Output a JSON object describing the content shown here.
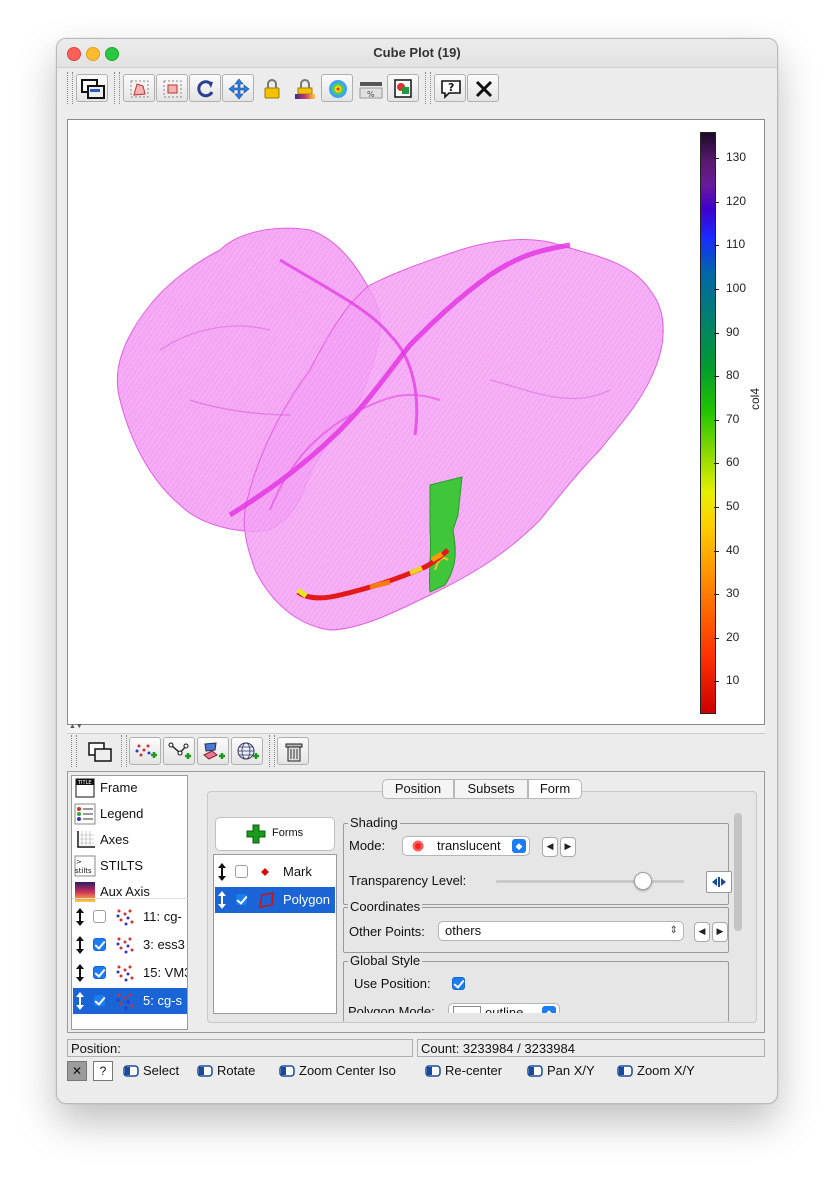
{
  "window": {
    "title": "Cube Plot (19)"
  },
  "toolbar": {
    "buttons": [
      "window-icon",
      "fill-subset-icon",
      "blob-subset-icon",
      "rotate-icon",
      "resize-icon",
      "axis-lock-icon",
      "aux-lock-icon",
      "colour-map-icon",
      "progress-icon",
      "export-icon",
      "help-icon",
      "close-icon"
    ]
  },
  "colorbar": {
    "label": "col4",
    "ticks": [
      "130",
      "120",
      "110",
      "100",
      "90",
      "80",
      "70",
      "60",
      "50",
      "40",
      "30",
      "20",
      "10"
    ],
    "min": 3,
    "max": 136
  },
  "controls": {
    "fixed": [
      {
        "label": "Frame",
        "icon": "frame-icon"
      },
      {
        "label": "Legend",
        "icon": "legend-icon"
      },
      {
        "label": "Axes",
        "icon": "axes-icon"
      },
      {
        "label": "STILTS",
        "icon": "stilts-icon"
      },
      {
        "label": "Aux Axis",
        "icon": "aux-axis-icon"
      }
    ],
    "layers": [
      {
        "label": "11: cg-",
        "checked": false,
        "selected": false
      },
      {
        "label": "3: ess3",
        "checked": true,
        "selected": false
      },
      {
        "label": "15: VM3",
        "checked": true,
        "selected": false
      },
      {
        "label": "5: cg-s",
        "checked": true,
        "selected": true
      }
    ]
  },
  "tabs": [
    {
      "label": "Position",
      "active": false
    },
    {
      "label": "Subsets",
      "active": false
    },
    {
      "label": "Form",
      "active": true
    }
  ],
  "forms": {
    "button_label": "Forms",
    "items": [
      {
        "label": "Mark",
        "checked": false,
        "selected": false
      },
      {
        "label": "Polygon",
        "checked": true,
        "selected": true
      }
    ]
  },
  "shading": {
    "title": "Shading",
    "mode_label": "Mode:",
    "mode_value": "translucent",
    "transparency_label": "Transparency Level:",
    "transparency_level": 0.8
  },
  "coordinates": {
    "title": "Coordinates",
    "other_points_label": "Other Points:",
    "other_points_value": "others"
  },
  "global_style": {
    "title": "Global Style",
    "use_position_label": "Use Position:",
    "use_position_checked": true,
    "polygon_mode_label": "Polygon Mode:",
    "polygon_mode_value": "outline"
  },
  "status": {
    "position_label": "Position:",
    "count_text": "Count: 3233984 / 3233984"
  },
  "mouse_hints": {
    "close_label": "✕",
    "help_label": "?",
    "items": [
      "Select",
      "Rotate",
      "Zoom Center Iso",
      "Re-center",
      "Pan X/Y",
      "Zoom X/Y"
    ]
  }
}
